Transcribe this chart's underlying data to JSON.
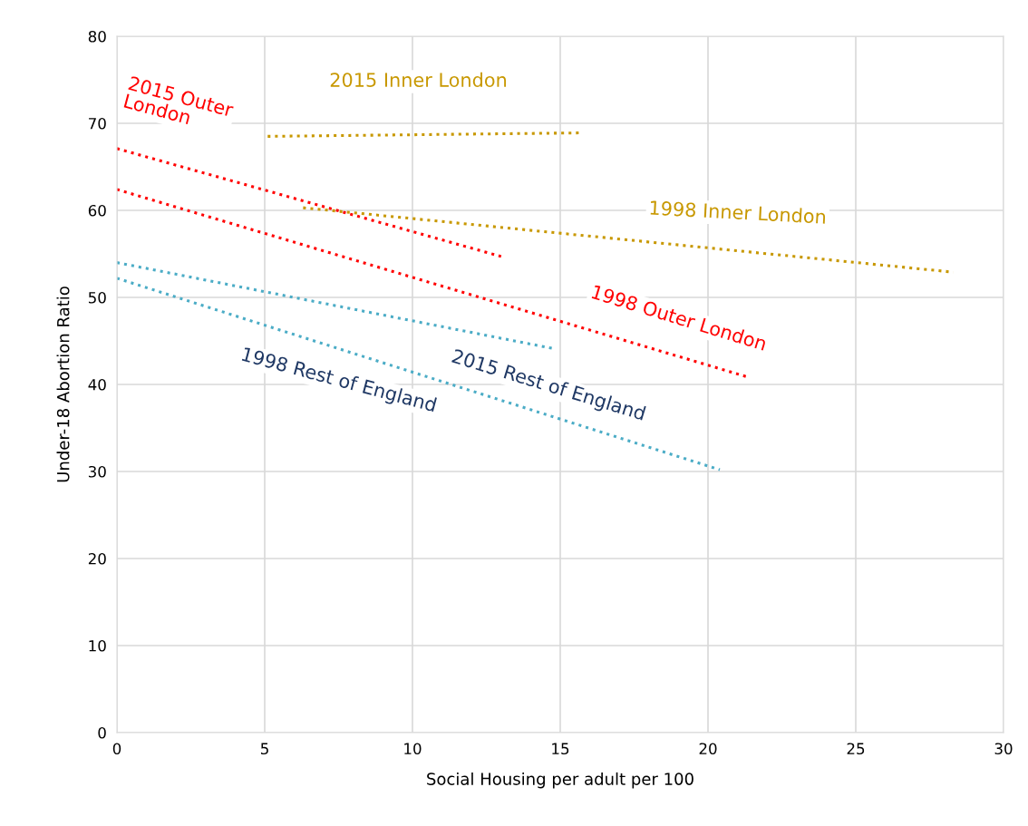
{
  "chart_data": {
    "type": "line",
    "xlabel": "Social Housing per adult per 100",
    "ylabel": "Under-18 Abortion Ratio",
    "xlim": [
      0,
      30
    ],
    "xticks": [
      0,
      5,
      10,
      15,
      20,
      25,
      30
    ],
    "ylim": [
      0,
      80
    ],
    "yticks": [
      0,
      10,
      20,
      30,
      40,
      50,
      60,
      70,
      80
    ],
    "grid": true,
    "legend": false,
    "marker": "none",
    "line_style": "dotted",
    "series": [
      {
        "name": "2015 Outer London",
        "color": "#ff0000",
        "x": [
          0,
          13.0
        ],
        "values": [
          67.1,
          54.7
        ]
      },
      {
        "name": "2015 Inner London",
        "color": "#c89800",
        "x": [
          5.1,
          15.7
        ],
        "values": [
          68.5,
          68.9
        ]
      },
      {
        "name": "1998 Inner London",
        "color": "#c89800",
        "x": [
          6.3,
          28.3
        ],
        "values": [
          60.3,
          52.9
        ]
      },
      {
        "name": "1998 Outer London",
        "color": "#ff0000",
        "x": [
          0,
          21.3
        ],
        "values": [
          62.4,
          40.9
        ]
      },
      {
        "name": "2015 Rest of England",
        "color": "#4bacc6",
        "x": [
          0,
          14.8
        ],
        "values": [
          54.0,
          44.1
        ]
      },
      {
        "name": "1998 Rest of England",
        "color": "#4bacc6",
        "x": [
          0,
          20.4
        ],
        "values": [
          52.2,
          30.2
        ]
      }
    ]
  }
}
